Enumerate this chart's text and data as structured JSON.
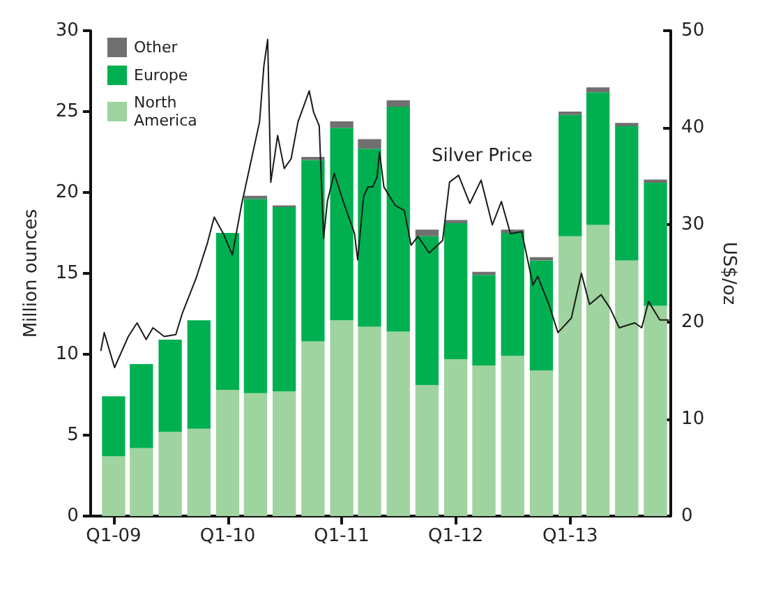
{
  "chart_data": {
    "type": "bar",
    "stacked": true,
    "ylabel": "Million ounces",
    "y2label": "US$/oz",
    "legend": "top left",
    "marker": "none",
    "x": [
      "2009-02-15",
      "2009-05-15",
      "2009-08-15",
      "2009-11-15",
      "2010-02-15",
      "2010-05-15",
      "2010-08-15",
      "2010-11-15",
      "2011-02-15",
      "2011-05-15",
      "2011-08-15",
      "2011-11-15",
      "2012-02-15",
      "2012-05-15",
      "2012-08-15",
      "2012-11-15",
      "2013-02-15",
      "2013-05-15",
      "2013-08-15",
      "2013-11-15"
    ],
    "xlim": [
      "2008-12-01",
      "2014-01-01"
    ],
    "xticks": [
      {
        "value": "2009-02-15",
        "label": "Q1-09"
      },
      {
        "value": "2010-02-15",
        "label": "Q1-10"
      },
      {
        "value": "2011-02-15",
        "label": "Q1-11"
      },
      {
        "value": "2012-02-15",
        "label": "Q1-12"
      },
      {
        "value": "2013-02-15",
        "label": "Q1-13"
      }
    ],
    "ylim": [
      0,
      30
    ],
    "yticks": [
      0,
      5,
      10,
      15,
      20,
      25,
      30
    ],
    "y2lim": [
      0,
      50
    ],
    "y2ticks": [
      0,
      10,
      20,
      30,
      40,
      50
    ],
    "series": [
      {
        "name": "North America",
        "color": "#9fd39f",
        "values": [
          3.7,
          4.2,
          5.2,
          5.4,
          7.8,
          7.6,
          7.7,
          10.8,
          12.1,
          11.7,
          11.4,
          8.1,
          9.7,
          9.3,
          9.9,
          9.0,
          17.3,
          18.0,
          15.8,
          13.0
        ]
      },
      {
        "name": "Europe",
        "color": "#00b050",
        "values": [
          3.7,
          5.2,
          5.7,
          6.7,
          9.7,
          12.0,
          11.4,
          11.2,
          11.9,
          11.0,
          13.9,
          9.2,
          8.4,
          5.6,
          7.6,
          6.8,
          7.5,
          8.2,
          8.3,
          7.6
        ]
      },
      {
        "name": "Other",
        "color": "#707070",
        "values": [
          0,
          0,
          0,
          0,
          0,
          0.2,
          0.1,
          0.2,
          0.4,
          0.6,
          0.4,
          0.4,
          0.2,
          0.2,
          0.2,
          0.2,
          0.2,
          0.3,
          0.2,
          0.2
        ]
      },
      {
        "name": "Silver Price",
        "type": "line",
        "axis": "y2",
        "color": "#1a1a1a",
        "x": [
          "2009-01-05",
          "2009-01-16",
          "2009-02-18",
          "2009-04-03",
          "2009-05-01",
          "2009-05-30",
          "2009-06-21",
          "2009-07-27",
          "2009-09-02",
          "2009-09-23",
          "2009-11-06",
          "2009-12-12",
          "2010-01-03",
          "2010-02-01",
          "2010-03-02",
          "2010-03-31",
          "2010-04-29",
          "2010-05-28",
          "2010-06-11",
          "2010-06-23",
          "2010-07-03",
          "2010-07-25",
          "2010-08-15",
          "2010-09-06",
          "2010-09-28",
          "2010-11-03",
          "2010-11-17",
          "2010-12-05",
          "2010-12-19",
          "2010-12-31",
          "2011-01-22",
          "2011-02-20",
          "2011-03-28",
          "2011-04-07",
          "2011-04-26",
          "2011-05-10",
          "2011-05-25",
          "2011-06-08",
          "2011-06-16",
          "2011-06-30",
          "2011-08-05",
          "2011-09-03",
          "2011-09-25",
          "2011-10-17",
          "2011-11-22",
          "2012-01-04",
          "2012-01-26",
          "2012-02-24",
          "2012-03-31",
          "2012-05-06",
          "2012-06-11",
          "2012-07-10",
          "2012-08-08",
          "2012-09-13",
          "2012-10-19",
          "2012-11-03",
          "2012-12-09",
          "2013-01-07",
          "2013-02-19",
          "2013-03-23",
          "2013-04-18",
          "2013-05-25",
          "2013-06-23",
          "2013-07-22",
          "2013-09-10",
          "2013-10-02",
          "2013-10-24",
          "2013-11-29",
          "2013-12-28"
        ],
        "values": [
          17.0,
          18.9,
          15.3,
          18.5,
          19.9,
          18.2,
          19.4,
          18.5,
          18.7,
          20.9,
          24.5,
          28.1,
          30.8,
          29.1,
          26.9,
          32.0,
          36.3,
          40.6,
          46.4,
          49.1,
          34.4,
          39.2,
          35.8,
          36.8,
          40.6,
          43.8,
          41.6,
          40.2,
          28.6,
          32.4,
          35.3,
          32.4,
          29.1,
          26.4,
          32.9,
          33.9,
          33.9,
          34.9,
          37.5,
          33.9,
          32.0,
          31.5,
          27.9,
          28.8,
          27.1,
          28.4,
          34.4,
          35.1,
          32.2,
          34.6,
          30.0,
          32.4,
          29.1,
          29.3,
          23.8,
          24.7,
          21.8,
          18.9,
          20.4,
          25.0,
          21.8,
          22.8,
          21.4,
          19.4,
          19.9,
          19.4,
          22.1,
          20.2,
          20.2
        ]
      }
    ]
  }
}
